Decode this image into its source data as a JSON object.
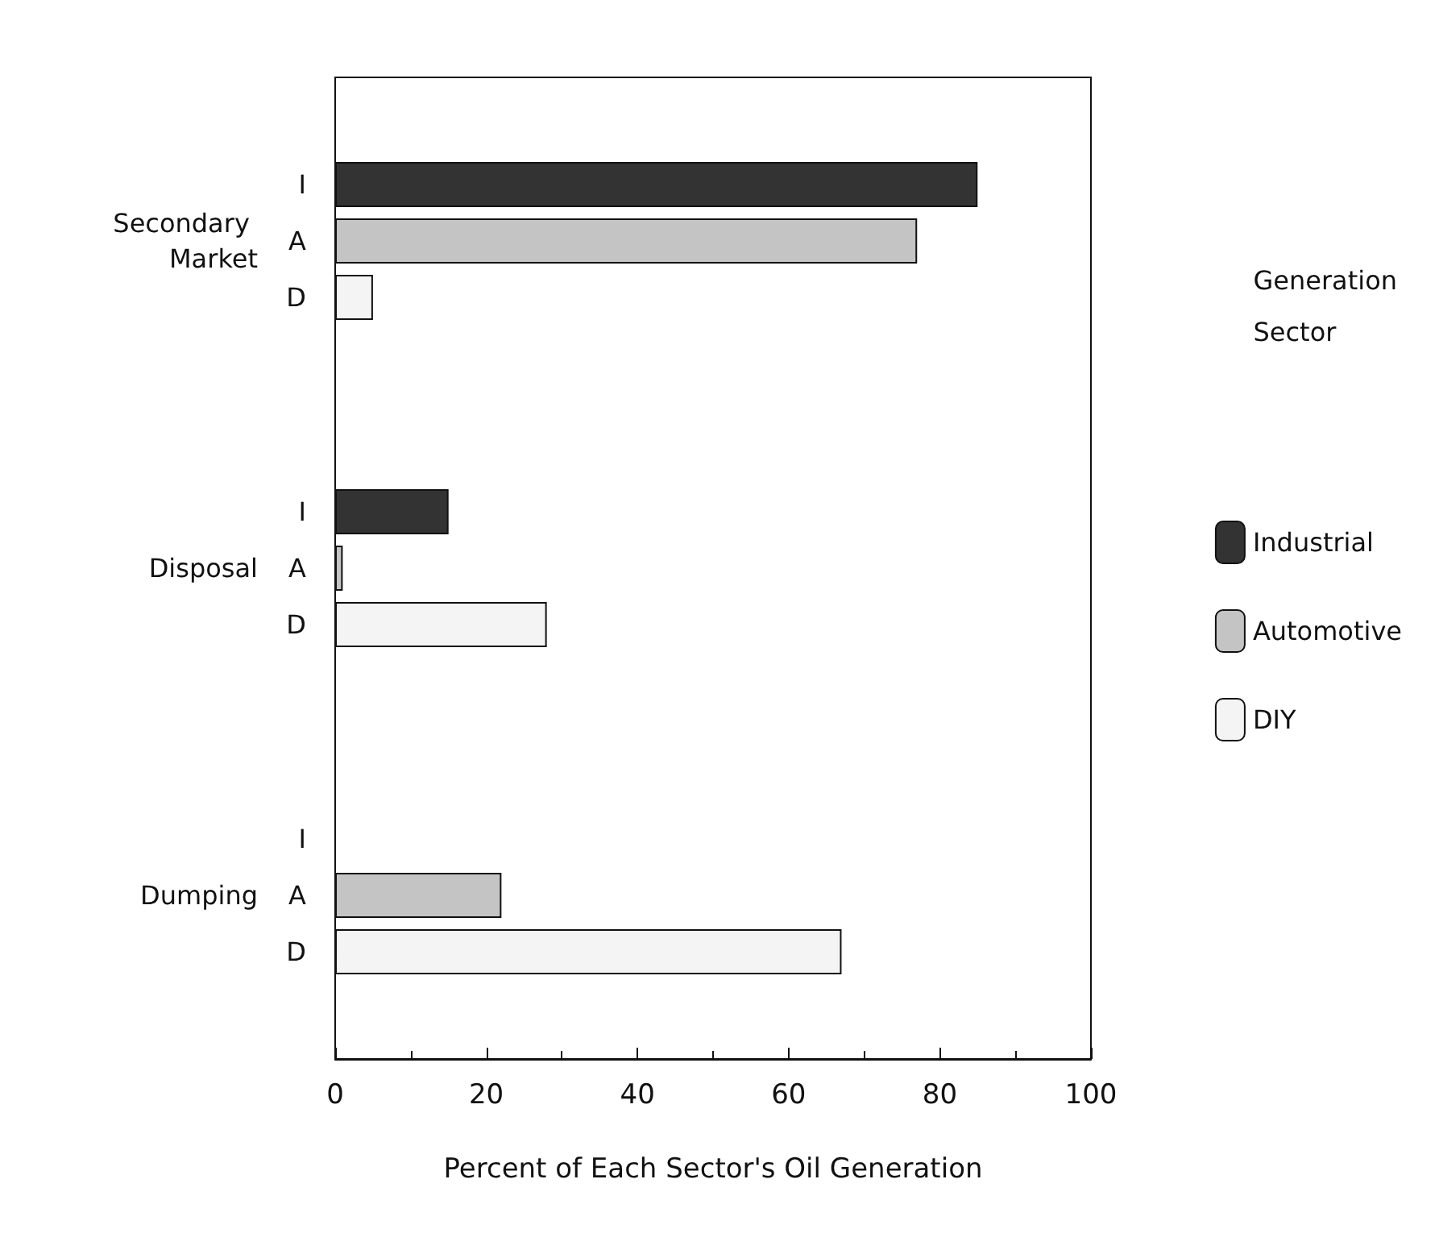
{
  "chart_data": {
    "type": "bar",
    "orientation": "horizontal",
    "xlabel": "Percent of Each Sector's Oil Generation",
    "legend_title": "Generation Sector",
    "categories": [
      "Secondary Market",
      "Disposal",
      "Dumping"
    ],
    "series": [
      {
        "name": "Industrial",
        "color": "#333333",
        "values": [
          85,
          15,
          0
        ]
      },
      {
        "name": "Automotive",
        "color": "#c4c4c4",
        "values": [
          77,
          1,
          22
        ]
      },
      {
        "name": "DIY",
        "color": "#f4f4f4",
        "values": [
          5,
          28,
          67
        ]
      }
    ],
    "annotations": [
      "I",
      "A",
      "D"
    ],
    "xlim": [
      0,
      100
    ],
    "xticks": [
      0,
      20,
      40,
      60,
      80,
      100
    ],
    "grid": false,
    "legend": "right"
  }
}
